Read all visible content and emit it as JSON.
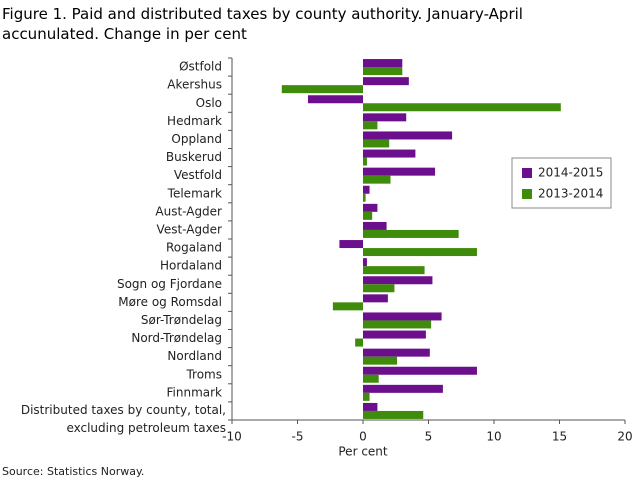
{
  "chart_data": {
    "type": "hbar",
    "title": "Figure 1. Paid and distributed taxes by county authority. January-April accunulated. Change in per cent",
    "source": "Source: Statistics Norway.",
    "xlabel": "Per cent",
    "categories": [
      "Østfold",
      "Akershus",
      "Oslo",
      "Hedmark",
      "Oppland",
      "Buskerud",
      "Vestfold",
      "Telemark",
      "Aust-Agder",
      "Vest-Agder",
      "Rogaland",
      "Hordaland",
      "Sogn og Fjordane",
      "Møre og Romsdal",
      "Sør-Trøndelag",
      "Nord-Trøndelag",
      "Nordland",
      "Troms",
      "Finnmark",
      "Distributed taxes by county, total, excluding petroleum taxes"
    ],
    "series": [
      {
        "name": "2014-2015",
        "color": "#6c0f8c",
        "values": [
          3.0,
          3.5,
          -4.2,
          3.3,
          6.8,
          4.0,
          5.5,
          0.5,
          1.1,
          1.8,
          -1.8,
          0.3,
          5.3,
          1.9,
          6.0,
          4.8,
          5.1,
          8.7,
          6.1,
          1.1
        ]
      },
      {
        "name": "2013-2014",
        "color": "#3f8c0c",
        "values": [
          3.0,
          -6.2,
          15.1,
          1.1,
          2.0,
          0.3,
          2.1,
          0.2,
          0.7,
          7.3,
          8.7,
          4.7,
          2.4,
          -2.3,
          5.2,
          -0.6,
          2.6,
          1.2,
          0.5,
          4.6
        ]
      }
    ],
    "xlim": [
      -10,
      20
    ],
    "xticks": [
      -10,
      -5,
      0,
      5,
      10,
      15,
      20
    ],
    "grid": false
  }
}
